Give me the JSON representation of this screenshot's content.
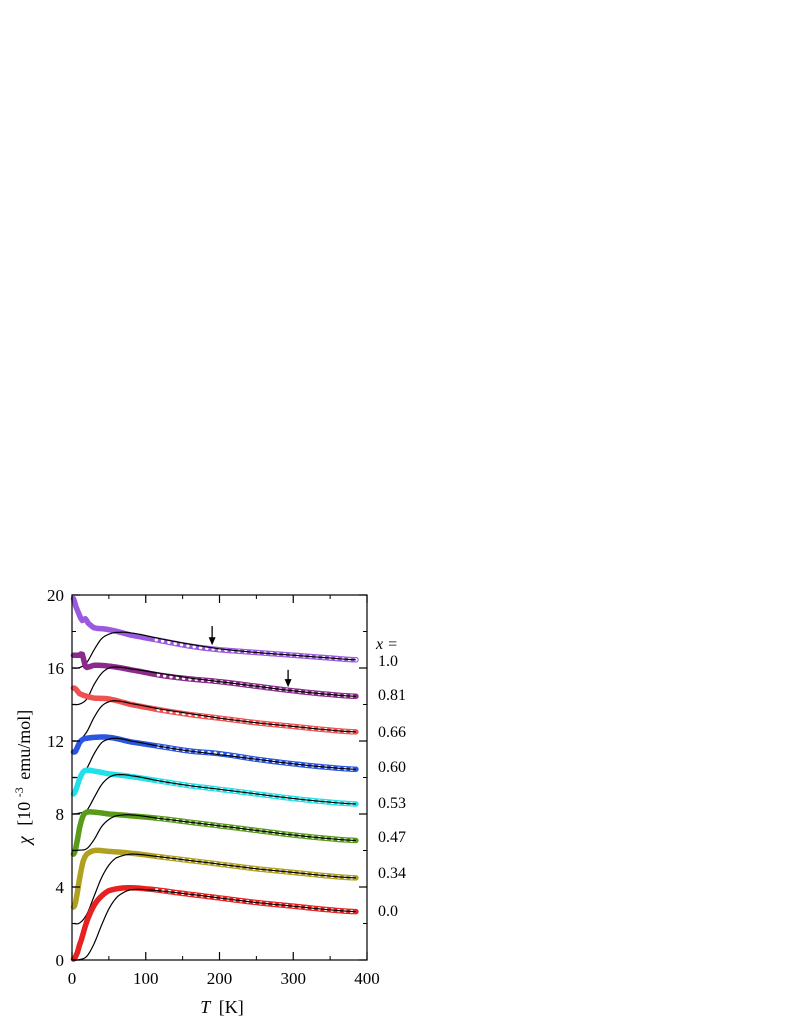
{
  "chart_data": {
    "type": "line",
    "xlabel_symbol": "T",
    "xlabel_unit": "[K]",
    "ylabel_symbol": "χ",
    "ylabel_unit_pre": "[10",
    "ylabel_exponent": "-3",
    "ylabel_unit_post": "emu/mol]",
    "xlim": [
      0,
      400
    ],
    "ylim": [
      0,
      20
    ],
    "x_ticks": [
      0,
      100,
      200,
      300,
      400
    ],
    "y_ticks": [
      0,
      4,
      8,
      12,
      16,
      20
    ],
    "grid": false,
    "legend_header": "x =",
    "series": [
      {
        "name": "1.0",
        "color": "#9b59e0",
        "offset": 16,
        "data_points": [
          [
            2,
            19.8
          ],
          [
            5,
            19.4
          ],
          [
            10,
            18.9
          ],
          [
            14,
            18.6
          ],
          [
            18,
            18.7
          ],
          [
            22,
            18.45
          ],
          [
            30,
            18.2
          ],
          [
            50,
            18.1
          ],
          [
            80,
            17.8
          ],
          [
            120,
            17.5
          ],
          [
            160,
            17.2
          ],
          [
            200,
            17.0
          ],
          [
            250,
            16.85
          ],
          [
            300,
            16.7
          ],
          [
            350,
            16.55
          ],
          [
            385,
            16.45
          ]
        ],
        "fit_points": [
          [
            2,
            16.0
          ],
          [
            10,
            16.02
          ],
          [
            20,
            16.3
          ],
          [
            30,
            17.0
          ],
          [
            40,
            17.6
          ],
          [
            50,
            17.85
          ],
          [
            60,
            17.95
          ],
          [
            80,
            17.92
          ],
          [
            120,
            17.6
          ],
          [
            160,
            17.3
          ],
          [
            200,
            17.05
          ],
          [
            250,
            16.85
          ],
          [
            300,
            16.7
          ],
          [
            350,
            16.55
          ],
          [
            385,
            16.45
          ]
        ]
      },
      {
        "name": "0.81",
        "color": "#8a2a8a",
        "offset": 14,
        "data_points": [
          [
            2,
            16.7
          ],
          [
            10,
            16.7
          ],
          [
            14,
            16.75
          ],
          [
            18,
            16.1
          ],
          [
            22,
            16.05
          ],
          [
            30,
            16.15
          ],
          [
            50,
            16.1
          ],
          [
            80,
            15.9
          ],
          [
            120,
            15.6
          ],
          [
            160,
            15.4
          ],
          [
            200,
            15.25
          ],
          [
            250,
            15.0
          ],
          [
            300,
            14.75
          ],
          [
            350,
            14.55
          ],
          [
            385,
            14.45
          ]
        ],
        "fit_points": [
          [
            2,
            14.0
          ],
          [
            10,
            14.02
          ],
          [
            20,
            14.3
          ],
          [
            30,
            15.1
          ],
          [
            40,
            15.7
          ],
          [
            50,
            16.0
          ],
          [
            60,
            16.05
          ],
          [
            80,
            15.95
          ],
          [
            120,
            15.7
          ],
          [
            160,
            15.45
          ],
          [
            200,
            15.25
          ],
          [
            250,
            15.0
          ],
          [
            300,
            14.75
          ],
          [
            350,
            14.55
          ],
          [
            385,
            14.45
          ]
        ]
      },
      {
        "name": "0.66",
        "color": "#f05050",
        "offset": 12,
        "data_points": [
          [
            2,
            14.9
          ],
          [
            5,
            14.85
          ],
          [
            10,
            14.6
          ],
          [
            20,
            14.45
          ],
          [
            30,
            14.35
          ],
          [
            50,
            14.3
          ],
          [
            80,
            14.0
          ],
          [
            120,
            13.7
          ],
          [
            160,
            13.45
          ],
          [
            200,
            13.25
          ],
          [
            250,
            13.0
          ],
          [
            300,
            12.8
          ],
          [
            350,
            12.6
          ],
          [
            385,
            12.5
          ]
        ],
        "fit_points": [
          [
            2,
            12.0
          ],
          [
            10,
            12.05
          ],
          [
            20,
            12.5
          ],
          [
            30,
            13.3
          ],
          [
            40,
            13.9
          ],
          [
            50,
            14.15
          ],
          [
            60,
            14.2
          ],
          [
            80,
            14.05
          ],
          [
            120,
            13.75
          ],
          [
            160,
            13.5
          ],
          [
            200,
            13.25
          ],
          [
            250,
            13.0
          ],
          [
            300,
            12.8
          ],
          [
            350,
            12.6
          ],
          [
            385,
            12.5
          ]
        ]
      },
      {
        "name": "0.60",
        "color": "#2a55e0",
        "offset": 10,
        "data_points": [
          [
            2,
            11.4
          ],
          [
            5,
            11.45
          ],
          [
            10,
            11.9
          ],
          [
            15,
            12.1
          ],
          [
            20,
            12.15
          ],
          [
            30,
            12.2
          ],
          [
            50,
            12.2
          ],
          [
            80,
            11.95
          ],
          [
            120,
            11.7
          ],
          [
            160,
            11.45
          ],
          [
            200,
            11.3
          ],
          [
            250,
            11.0
          ],
          [
            300,
            10.75
          ],
          [
            350,
            10.55
          ],
          [
            385,
            10.45
          ]
        ],
        "fit_points": [
          [
            2,
            10.0
          ],
          [
            10,
            10.05
          ],
          [
            20,
            10.5
          ],
          [
            30,
            11.3
          ],
          [
            40,
            11.9
          ],
          [
            50,
            12.1
          ],
          [
            60,
            12.15
          ],
          [
            80,
            12.0
          ],
          [
            120,
            11.7
          ],
          [
            160,
            11.45
          ],
          [
            200,
            11.25
          ],
          [
            250,
            11.0
          ],
          [
            300,
            10.75
          ],
          [
            350,
            10.55
          ],
          [
            385,
            10.45
          ]
        ]
      },
      {
        "name": "0.53",
        "color": "#22e0e8",
        "offset": 8,
        "data_points": [
          [
            2,
            9.1
          ],
          [
            5,
            9.3
          ],
          [
            10,
            9.9
          ],
          [
            15,
            10.3
          ],
          [
            20,
            10.4
          ],
          [
            30,
            10.35
          ],
          [
            50,
            10.2
          ],
          [
            80,
            10.05
          ],
          [
            120,
            9.8
          ],
          [
            160,
            9.55
          ],
          [
            200,
            9.35
          ],
          [
            250,
            9.1
          ],
          [
            300,
            8.85
          ],
          [
            350,
            8.65
          ],
          [
            385,
            8.55
          ]
        ],
        "fit_points": [
          [
            2,
            8.0
          ],
          [
            10,
            8.05
          ],
          [
            20,
            8.2
          ],
          [
            30,
            8.9
          ],
          [
            40,
            9.6
          ],
          [
            50,
            10.0
          ],
          [
            60,
            10.15
          ],
          [
            80,
            10.1
          ],
          [
            120,
            9.8
          ],
          [
            160,
            9.55
          ],
          [
            200,
            9.35
          ],
          [
            250,
            9.1
          ],
          [
            300,
            8.85
          ],
          [
            350,
            8.65
          ],
          [
            385,
            8.55
          ]
        ]
      },
      {
        "name": "0.47",
        "color": "#5a9a1a",
        "offset": 6,
        "data_points": [
          [
            2,
            5.8
          ],
          [
            5,
            6.1
          ],
          [
            10,
            7.2
          ],
          [
            15,
            7.9
          ],
          [
            20,
            8.1
          ],
          [
            30,
            8.1
          ],
          [
            50,
            8.0
          ],
          [
            80,
            7.9
          ],
          [
            120,
            7.75
          ],
          [
            160,
            7.55
          ],
          [
            200,
            7.35
          ],
          [
            250,
            7.1
          ],
          [
            300,
            6.85
          ],
          [
            350,
            6.65
          ],
          [
            385,
            6.55
          ]
        ],
        "fit_points": [
          [
            2,
            6.0
          ],
          [
            10,
            6.02
          ],
          [
            20,
            6.1
          ],
          [
            30,
            6.6
          ],
          [
            40,
            7.3
          ],
          [
            50,
            7.7
          ],
          [
            60,
            7.9
          ],
          [
            80,
            7.95
          ],
          [
            120,
            7.75
          ],
          [
            160,
            7.55
          ],
          [
            200,
            7.35
          ],
          [
            250,
            7.1
          ],
          [
            300,
            6.85
          ],
          [
            350,
            6.65
          ],
          [
            385,
            6.55
          ]
        ]
      },
      {
        "name": "0.34",
        "color": "#b0a020",
        "offset": 4,
        "data_points": [
          [
            2,
            2.9
          ],
          [
            5,
            3.2
          ],
          [
            10,
            4.4
          ],
          [
            15,
            5.4
          ],
          [
            20,
            5.8
          ],
          [
            30,
            6.0
          ],
          [
            50,
            5.95
          ],
          [
            80,
            5.85
          ],
          [
            120,
            5.65
          ],
          [
            160,
            5.45
          ],
          [
            200,
            5.25
          ],
          [
            250,
            5.0
          ],
          [
            300,
            4.8
          ],
          [
            350,
            4.6
          ],
          [
            385,
            4.5
          ]
        ],
        "fit_points": [
          [
            2,
            2.0
          ],
          [
            10,
            2.02
          ],
          [
            20,
            2.5
          ],
          [
            30,
            3.5
          ],
          [
            40,
            4.5
          ],
          [
            50,
            5.2
          ],
          [
            60,
            5.6
          ],
          [
            80,
            5.8
          ],
          [
            120,
            5.65
          ],
          [
            160,
            5.45
          ],
          [
            200,
            5.25
          ],
          [
            250,
            5.0
          ],
          [
            300,
            4.8
          ],
          [
            350,
            4.6
          ],
          [
            385,
            4.5
          ]
        ]
      },
      {
        "name": "0.0",
        "color": "#e82020",
        "offset": 0,
        "data_points": [
          [
            2,
            0.05
          ],
          [
            5,
            0.2
          ],
          [
            10,
            0.8
          ],
          [
            20,
            2.1
          ],
          [
            30,
            3.0
          ],
          [
            40,
            3.5
          ],
          [
            50,
            3.8
          ],
          [
            70,
            3.95
          ],
          [
            100,
            3.9
          ],
          [
            150,
            3.65
          ],
          [
            200,
            3.4
          ],
          [
            250,
            3.15
          ],
          [
            300,
            2.95
          ],
          [
            350,
            2.75
          ],
          [
            385,
            2.65
          ]
        ],
        "fit_points": [
          [
            2,
            0.0
          ],
          [
            10,
            0.02
          ],
          [
            20,
            0.2
          ],
          [
            30,
            0.9
          ],
          [
            40,
            1.9
          ],
          [
            50,
            2.8
          ],
          [
            60,
            3.4
          ],
          [
            70,
            3.7
          ],
          [
            80,
            3.85
          ],
          [
            100,
            3.85
          ],
          [
            150,
            3.65
          ],
          [
            200,
            3.4
          ],
          [
            250,
            3.15
          ],
          [
            300,
            2.95
          ],
          [
            350,
            2.75
          ],
          [
            385,
            2.65
          ]
        ]
      }
    ],
    "annotations": [
      {
        "type": "arrow-down",
        "x": 190,
        "y_tip": 17.25,
        "y_tail": 18.3
      },
      {
        "type": "arrow-down",
        "x": 293,
        "y_tip": 14.95,
        "y_tail": 15.9
      }
    ]
  }
}
